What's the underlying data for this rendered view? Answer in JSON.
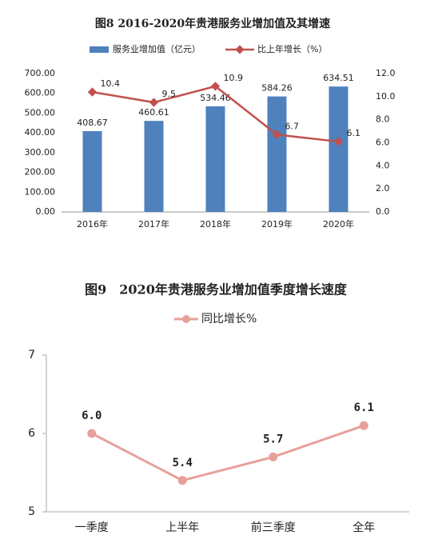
{
  "chart_data": [
    {
      "type": "bar-line",
      "title": "图8 2016-2020年贵港服务业增加值及其增速",
      "categories": [
        "2016年",
        "2017年",
        "2018年",
        "2019年",
        "2020年"
      ],
      "series": [
        {
          "name": "服务业增加值（亿元）",
          "color": "#4f81bd",
          "type": "bar",
          "values": [
            408.67,
            460.61,
            534.46,
            584.26,
            634.51
          ]
        },
        {
          "name": "比上年增长（%）",
          "color": "#c0504d",
          "type": "line",
          "axis": "y2",
          "values": [
            10.4,
            9.5,
            10.9,
            6.7,
            6.1
          ]
        }
      ],
      "ylim": [
        0,
        700
      ],
      "yticks": [
        {
          "value": 0,
          "label": "0.00"
        },
        {
          "value": 100,
          "label": "100.00"
        },
        {
          "value": 200,
          "label": "200.00"
        },
        {
          "value": 300,
          "label": "300.00"
        },
        {
          "value": 400,
          "label": "400.00"
        },
        {
          "value": 500,
          "label": "500.00"
        },
        {
          "value": 600,
          "label": "600.00"
        },
        {
          "value": 700,
          "label": "700.00"
        }
      ],
      "y2lim": [
        0,
        12
      ],
      "y2ticks": [
        {
          "value": 0,
          "label": "0.0"
        },
        {
          "value": 2,
          "label": "2.0"
        },
        {
          "value": 4,
          "label": "4.0"
        },
        {
          "value": 6,
          "label": "6.0"
        },
        {
          "value": 8,
          "label": "8.0"
        },
        {
          "value": 10,
          "label": "10.0"
        },
        {
          "value": 12,
          "label": "12.0"
        }
      ],
      "grid": false
    },
    {
      "type": "line",
      "title": "图9　2020年贵港服务业增加值季度增长速度",
      "categories": [
        "一季度",
        "上半年",
        "前三季度",
        "全年"
      ],
      "series": [
        {
          "name": "同比增长%",
          "color": "#e8a09a",
          "values": [
            6.0,
            5.4,
            5.7,
            6.1
          ],
          "value_labels": [
            "6.0",
            "5.4",
            "5.7",
            "6.1"
          ]
        }
      ],
      "ylim": [
        5,
        7
      ],
      "yticks": [
        5,
        6,
        7
      ],
      "grid": false
    }
  ]
}
